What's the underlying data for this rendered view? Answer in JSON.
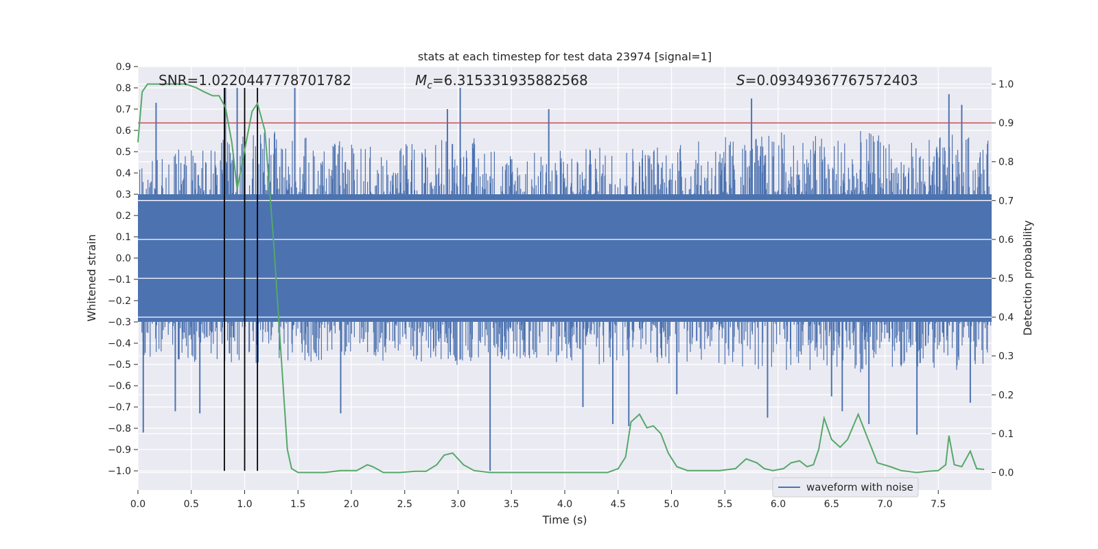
{
  "chart_data": {
    "type": "line",
    "title": "stats at each timestep for test data 23974 [signal=1]",
    "xlabel": "Time (s)",
    "ylabel": "Whitened strain",
    "y2label": "Detection probability",
    "xlim": [
      0.0,
      8.0
    ],
    "ylim": [
      -1.09,
      0.9
    ],
    "y2lim": [
      -0.045,
      1.045
    ],
    "x_ticks": [
      0.0,
      0.5,
      1.0,
      1.5,
      2.0,
      2.5,
      3.0,
      3.5,
      4.0,
      4.5,
      5.0,
      5.5,
      6.0,
      6.5,
      7.0,
      7.5
    ],
    "x_tick_labels": [
      "0.0",
      "0.5",
      "1.0",
      "1.5",
      "2.0",
      "2.5",
      "3.0",
      "3.5",
      "4.0",
      "4.5",
      "5.0",
      "5.5",
      "6.0",
      "6.5",
      "7.0",
      "7.5"
    ],
    "y_ticks": [
      0.9,
      0.8,
      0.7,
      0.6,
      0.5,
      0.4,
      0.3,
      0.2,
      0.1,
      0.0,
      -0.1,
      -0.2,
      -0.3,
      -0.4,
      -0.5,
      -0.6,
      -0.7,
      -0.8,
      -0.9,
      -1.0
    ],
    "y_tick_labels": [
      "0.9",
      "0.8",
      "0.7",
      "0.6",
      "0.5",
      "0.4",
      "0.3",
      "0.2",
      "0.1",
      "0.0",
      "−0.1",
      "−0.2",
      "−0.3",
      "−0.4",
      "−0.5",
      "−0.6",
      "−0.7",
      "−0.8",
      "−0.9",
      "−1.0"
    ],
    "y2_ticks": [
      1.0,
      0.9,
      0.8,
      0.7,
      0.6,
      0.5,
      0.4,
      0.3,
      0.2,
      0.1,
      0.0
    ],
    "y2_tick_labels": [
      "1.0",
      "0.9",
      "0.8",
      "0.7",
      "0.6",
      "0.5",
      "0.4",
      "0.3",
      "0.2",
      "0.1",
      "0.0"
    ],
    "grid": true,
    "legend": {
      "placement": "lower-right",
      "entries": [
        {
          "label": "waveform with noise",
          "color": "#4c72b0"
        }
      ]
    },
    "annotations": {
      "snr": "SNR=1.0220447778701782",
      "mc_symbol": "M",
      "mc_subscript": "c",
      "mc_value": "=6.315331935882568",
      "s_symbol": "S",
      "s_value": "=0.09349367767572403"
    },
    "threshold": {
      "value": 0.9,
      "color": "#c44e52"
    },
    "vertical_lines": [
      0.81,
      1.0,
      1.12
    ],
    "series": [
      {
        "name": "waveform with noise",
        "color": "#4c72b0",
        "axis": "left",
        "envelope_x": [
          0.0,
          0.25,
          0.5,
          0.75,
          1.0,
          1.25,
          1.5,
          1.75,
          2.0,
          2.25,
          2.5,
          2.75,
          3.0,
          3.25,
          3.5,
          3.75,
          4.0,
          4.25,
          4.5,
          4.75,
          5.0,
          5.25,
          5.5,
          5.75,
          6.0,
          6.25,
          6.5,
          6.75,
          7.0,
          7.25,
          7.5,
          7.75,
          8.0
        ],
        "envelope_upper": [
          0.45,
          0.5,
          0.52,
          0.55,
          0.58,
          0.6,
          0.58,
          0.55,
          0.55,
          0.52,
          0.55,
          0.55,
          0.6,
          0.55,
          0.52,
          0.5,
          0.52,
          0.52,
          0.55,
          0.55,
          0.55,
          0.55,
          0.58,
          0.58,
          0.6,
          0.6,
          0.58,
          0.6,
          0.58,
          0.55,
          0.58,
          0.58,
          0.55
        ],
        "envelope_lower": [
          -0.45,
          -0.48,
          -0.5,
          -0.5,
          -0.5,
          -0.5,
          -0.5,
          -0.5,
          -0.48,
          -0.48,
          -0.52,
          -0.5,
          -0.52,
          -0.48,
          -0.48,
          -0.48,
          -0.5,
          -0.5,
          -0.52,
          -0.52,
          -0.5,
          -0.5,
          -0.52,
          -0.52,
          -0.55,
          -0.52,
          -0.55,
          -0.55,
          -0.52,
          -0.52,
          -0.52,
          -0.55,
          -0.5
        ],
        "spikes": [
          {
            "x": 0.05,
            "y": -0.82
          },
          {
            "x": 0.17,
            "y": 0.73
          },
          {
            "x": 0.35,
            "y": -0.72
          },
          {
            "x": 0.58,
            "y": -0.73
          },
          {
            "x": 0.82,
            "y": 0.8
          },
          {
            "x": 0.93,
            "y": 0.8
          },
          {
            "x": 1.47,
            "y": 0.8
          },
          {
            "x": 1.9,
            "y": -0.73
          },
          {
            "x": 2.9,
            "y": 0.7
          },
          {
            "x": 3.02,
            "y": 0.8
          },
          {
            "x": 3.3,
            "y": -1.0
          },
          {
            "x": 3.85,
            "y": 0.7
          },
          {
            "x": 4.17,
            "y": -0.7
          },
          {
            "x": 4.45,
            "y": -0.78
          },
          {
            "x": 4.6,
            "y": -0.79
          },
          {
            "x": 5.05,
            "y": -0.64
          },
          {
            "x": 5.75,
            "y": 0.75
          },
          {
            "x": 5.9,
            "y": -0.75
          },
          {
            "x": 6.5,
            "y": -0.65
          },
          {
            "x": 6.6,
            "y": -0.72
          },
          {
            "x": 6.85,
            "y": -0.78
          },
          {
            "x": 7.3,
            "y": -0.83
          },
          {
            "x": 7.6,
            "y": 0.77
          },
          {
            "x": 7.8,
            "y": -0.68
          },
          {
            "x": 7.72,
            "y": 0.72
          }
        ]
      },
      {
        "name": "detection probability",
        "color": "#55a868",
        "axis": "right",
        "x": [
          0.0,
          0.04,
          0.09,
          0.15,
          0.25,
          0.35,
          0.45,
          0.55,
          0.62,
          0.7,
          0.76,
          0.82,
          0.88,
          0.93,
          1.0,
          1.07,
          1.12,
          1.19,
          1.27,
          1.33,
          1.4,
          1.44,
          1.5,
          1.6,
          1.75,
          1.9,
          2.05,
          2.15,
          2.2,
          2.3,
          2.45,
          2.6,
          2.7,
          2.8,
          2.87,
          2.95,
          3.05,
          3.15,
          3.3,
          3.5,
          3.8,
          4.0,
          4.2,
          4.4,
          4.5,
          4.57,
          4.62,
          4.7,
          4.77,
          4.83,
          4.9,
          4.97,
          5.05,
          5.15,
          5.3,
          5.45,
          5.6,
          5.7,
          5.8,
          5.87,
          5.95,
          6.05,
          6.12,
          6.2,
          6.27,
          6.33,
          6.38,
          6.43,
          6.5,
          6.58,
          6.65,
          6.75,
          6.85,
          6.93,
          7.05,
          7.15,
          7.3,
          7.4,
          7.5,
          7.57,
          7.6,
          7.65,
          7.72,
          7.8,
          7.86,
          7.93
        ],
        "y": [
          0.85,
          0.98,
          1.0,
          1.0,
          1.0,
          1.0,
          1.0,
          0.99,
          0.98,
          0.97,
          0.97,
          0.94,
          0.85,
          0.73,
          0.83,
          0.93,
          0.95,
          0.88,
          0.6,
          0.35,
          0.06,
          0.01,
          0.0,
          0.0,
          0.0,
          0.005,
          0.005,
          0.02,
          0.015,
          0.0,
          0.0,
          0.003,
          0.003,
          0.02,
          0.045,
          0.05,
          0.02,
          0.005,
          0.0,
          0.0,
          0.0,
          0.0,
          0.0,
          0.0,
          0.01,
          0.04,
          0.13,
          0.15,
          0.115,
          0.12,
          0.1,
          0.05,
          0.015,
          0.005,
          0.005,
          0.005,
          0.01,
          0.035,
          0.025,
          0.01,
          0.005,
          0.01,
          0.025,
          0.03,
          0.015,
          0.02,
          0.06,
          0.14,
          0.085,
          0.065,
          0.085,
          0.15,
          0.08,
          0.025,
          0.015,
          0.005,
          0.0,
          0.003,
          0.005,
          0.02,
          0.095,
          0.02,
          0.015,
          0.055,
          0.01,
          0.008
        ]
      }
    ]
  }
}
